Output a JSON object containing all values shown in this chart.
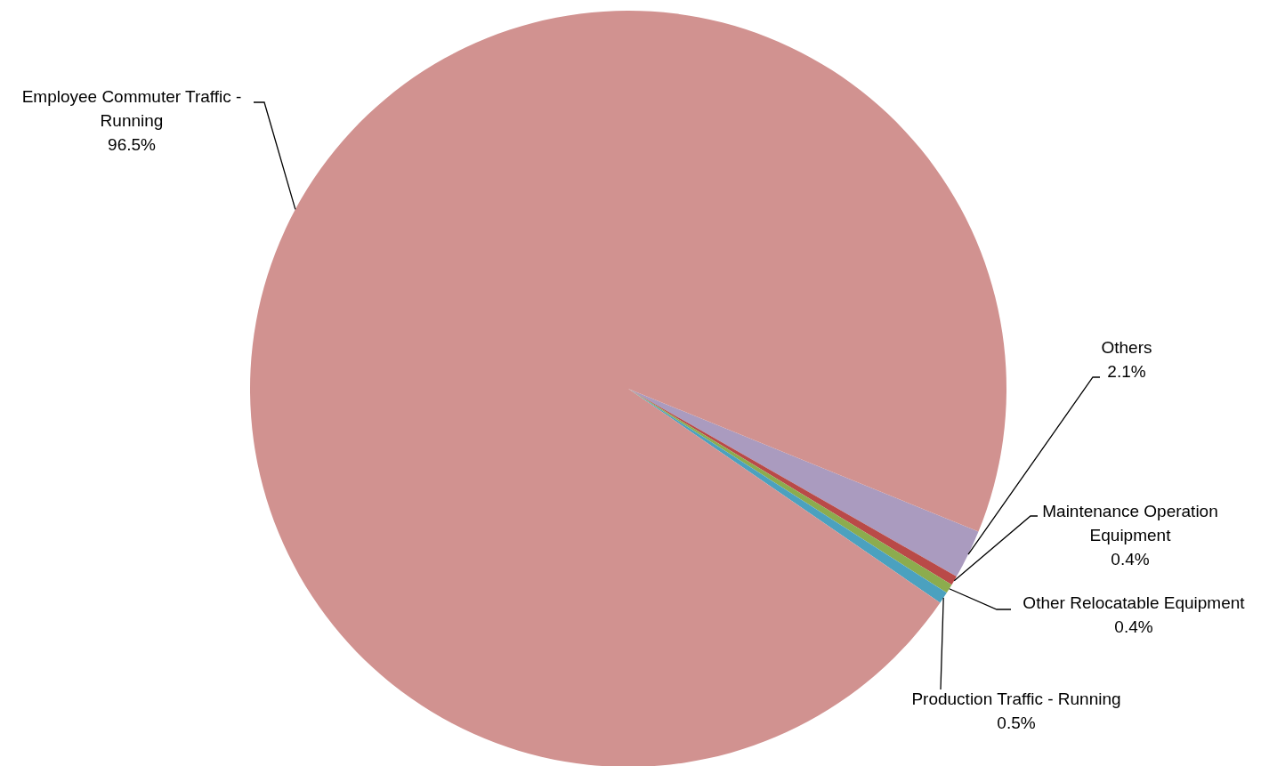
{
  "chart_data": {
    "type": "pie",
    "categories": [
      "Others",
      "Maintenance Operation Equipment",
      "Other Relocatable Equipment",
      "Production Traffic - Running",
      "Employee Commuter Traffic - Running"
    ],
    "values": [
      2.1,
      0.4,
      0.4,
      0.5,
      96.5
    ],
    "colors": [
      "#aa9bbf",
      "#b94a48",
      "#8cac4e",
      "#4ba1bf",
      "#d19290"
    ],
    "value_labels": [
      "2.1%",
      "0.4%",
      "0.4%",
      "0.5%",
      "96.5%"
    ]
  }
}
